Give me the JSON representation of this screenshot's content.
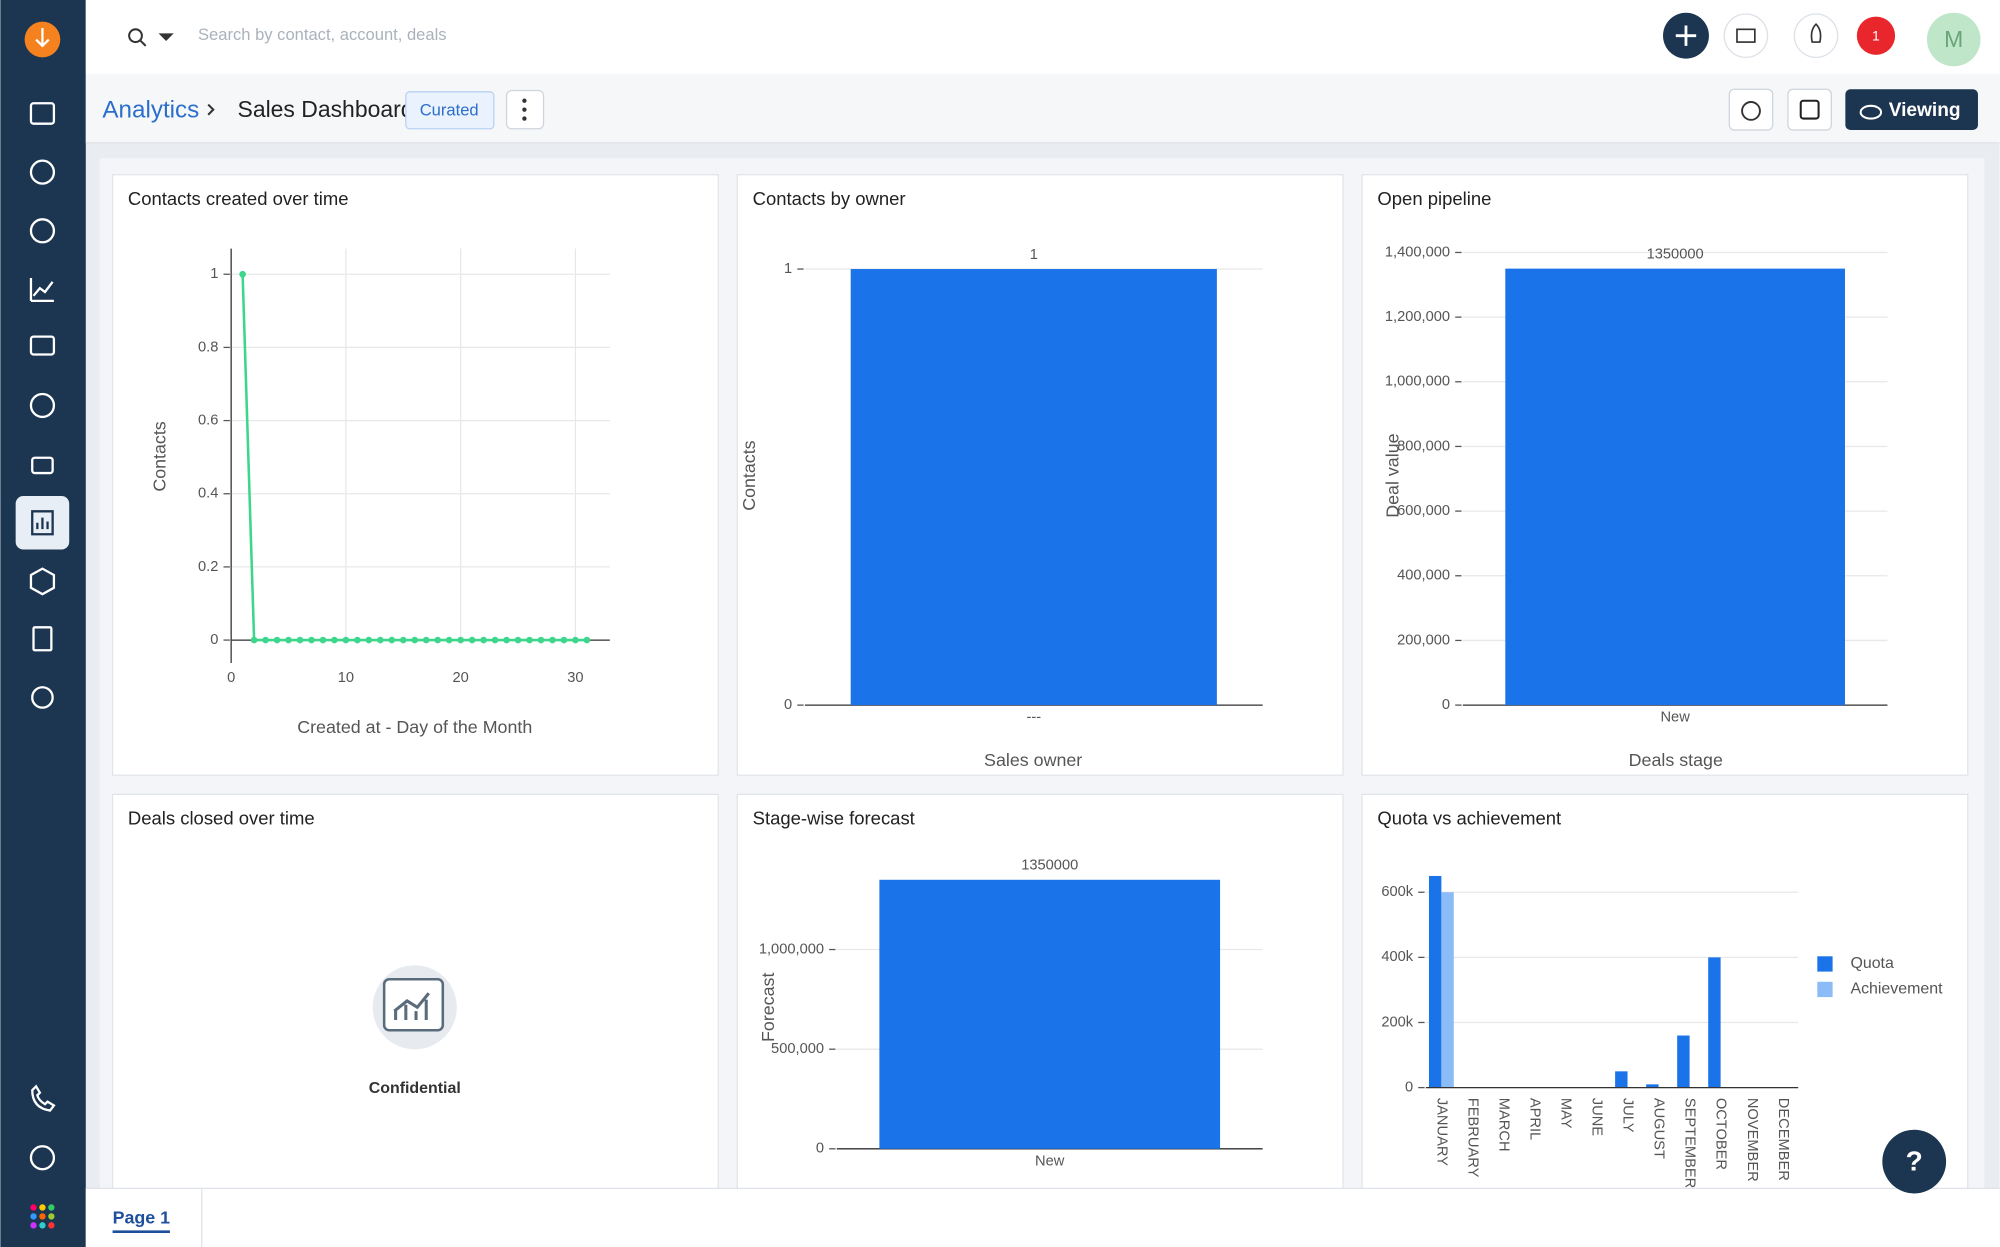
{
  "top_bar": {
    "search_placeholder": "Search by contact, account, deals",
    "notification_count": "1",
    "avatar_initial": "M"
  },
  "header": {
    "breadcrumb": "Analytics",
    "title": "Sales Dashboard",
    "badge": "Curated",
    "view_mode": "Viewing"
  },
  "chart_data": [
    {
      "type": "line",
      "title": "Contacts created over time",
      "x_label": "Created at - Day of the Month",
      "y_label": "Contacts",
      "x": [
        1,
        2,
        3,
        4,
        5,
        6,
        7,
        8,
        9,
        10,
        11,
        12,
        13,
        14,
        15,
        16,
        17,
        18,
        19,
        20,
        21,
        22,
        23,
        24,
        25,
        26,
        27,
        28,
        29,
        30,
        31
      ],
      "values": [
        1,
        0,
        0,
        0,
        0,
        0,
        0,
        0,
        0,
        0,
        0,
        0,
        0,
        0,
        0,
        0,
        0,
        0,
        0,
        0,
        0,
        0,
        0,
        0,
        0,
        0,
        0,
        0,
        0,
        0,
        0
      ],
      "color": "#3dd68c",
      "xlim": [
        0,
        33
      ],
      "ylim": [
        0,
        1.07
      ],
      "xticks": [
        0,
        10,
        20,
        30
      ],
      "yticks": [
        0,
        0.2,
        0.4,
        0.6,
        0.8,
        1
      ],
      "grid": true
    },
    {
      "type": "bar",
      "title": "Contacts by owner",
      "x_label": "Sales owner",
      "y_label": "Contacts",
      "categories": [
        "---"
      ],
      "values": [
        1
      ],
      "color": "#1a73e8",
      "ylim": [
        0,
        1
      ],
      "yticks": [
        0,
        1
      ],
      "grid": true
    },
    {
      "type": "bar",
      "title": "Open pipeline",
      "x_label": "Deals stage",
      "y_label": "Deal value",
      "categories": [
        "New"
      ],
      "values": [
        1350000
      ],
      "color": "#1a73e8",
      "ylim": [
        0,
        1400000
      ],
      "yticks": [
        0,
        {
          "value": 200000,
          "label": "200,000"
        },
        {
          "value": 400000,
          "label": "400,000"
        },
        {
          "value": 600000,
          "label": "600,000"
        },
        {
          "value": 800000,
          "label": "800,000"
        },
        {
          "value": 1000000,
          "label": "1,000,000"
        },
        {
          "value": 1200000,
          "label": "1,200,000"
        },
        {
          "value": 1400000,
          "label": "1,400,000"
        }
      ],
      "grid": true
    },
    {
      "type": "bar",
      "title": "Stage-wise forecast",
      "y_label": "Forecast",
      "categories": [
        "New"
      ],
      "values": [
        1350000
      ],
      "color": "#1a73e8",
      "ylim": [
        0,
        1350000
      ],
      "yticks": [
        0,
        {
          "value": 500000,
          "label": "500,000"
        },
        {
          "value": 1000000,
          "label": "1,000,000"
        }
      ],
      "grid": true
    },
    {
      "type": "grouped_bar",
      "title": "Quota vs achievement",
      "categories": [
        "JANUARY",
        "FEBRUARY",
        "MARCH",
        "APRIL",
        "MAY",
        "JUNE",
        "JULY",
        "AUGUST",
        "SEPTEMBER",
        "OCTOBER",
        "NOVEMBER",
        "DECEMBER"
      ],
      "series": [
        {
          "name": "Quota",
          "color": "#1a73e8",
          "values": [
            650000,
            0,
            0,
            0,
            0,
            0,
            50000,
            10000,
            160000,
            400000,
            0,
            0
          ]
        },
        {
          "name": "Achievement",
          "color": "#8bbcf7",
          "values": [
            600000,
            0,
            0,
            0,
            0,
            0,
            0,
            0,
            0,
            0,
            0,
            0
          ]
        }
      ],
      "ylim": [
        0,
        650000
      ],
      "yticks": [
        0,
        {
          "value": 200000,
          "label": "200k"
        },
        {
          "value": 400000,
          "label": "400k"
        },
        {
          "value": 600000,
          "label": "600k"
        }
      ],
      "grid": true,
      "legend": "right"
    }
  ],
  "confidential_widget": {
    "title": "Deals closed over time",
    "message": "Confidential"
  },
  "footer": {
    "page_tab": "Page 1"
  },
  "help_button": "?"
}
